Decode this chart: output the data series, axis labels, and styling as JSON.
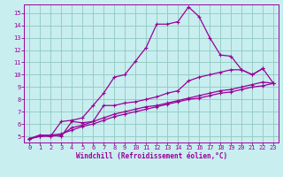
{
  "xlabel": "Windchill (Refroidissement éolien,°C)",
  "background_color": "#c8eef0",
  "grid_color": "#90c8c0",
  "line_color": "#990099",
  "x_ticks": [
    0,
    1,
    2,
    3,
    4,
    5,
    6,
    7,
    8,
    9,
    10,
    11,
    12,
    13,
    14,
    15,
    16,
    17,
    18,
    19,
    20,
    21,
    22,
    23
  ],
  "y_ticks": [
    5,
    6,
    7,
    8,
    9,
    10,
    11,
    12,
    13,
    14,
    15
  ],
  "ylim": [
    4.5,
    15.7
  ],
  "xlim": [
    -0.5,
    23.5
  ],
  "series": [
    [
      4.8,
      5.1,
      5.0,
      6.2,
      6.3,
      6.5,
      7.5,
      8.5,
      9.8,
      10.0,
      11.1,
      12.2,
      14.1,
      14.1,
      14.3,
      15.5,
      14.7,
      13.0,
      11.6,
      11.5,
      10.4,
      10.0,
      10.5,
      null
    ],
    [
      4.8,
      5.1,
      5.1,
      5.0,
      6.2,
      6.1,
      6.2,
      7.5,
      7.5,
      7.7,
      7.8,
      8.0,
      8.2,
      8.5,
      8.7,
      9.5,
      9.8,
      10.0,
      10.2,
      10.4,
      10.4,
      10.0,
      10.5,
      9.3
    ],
    [
      4.8,
      5.0,
      5.0,
      5.1,
      5.7,
      5.9,
      6.2,
      6.5,
      6.8,
      7.0,
      7.2,
      7.4,
      7.5,
      7.7,
      7.9,
      8.1,
      8.3,
      8.5,
      8.7,
      8.8,
      9.0,
      9.2,
      9.4,
      9.3
    ],
    [
      4.8,
      5.0,
      5.1,
      5.2,
      5.5,
      5.8,
      6.0,
      6.3,
      6.6,
      6.8,
      7.0,
      7.2,
      7.4,
      7.6,
      7.8,
      8.0,
      8.1,
      8.3,
      8.5,
      8.6,
      8.8,
      9.0,
      9.1,
      9.3
    ]
  ]
}
